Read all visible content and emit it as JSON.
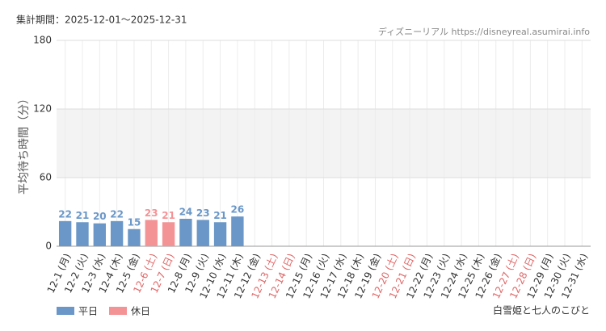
{
  "chart_data": {
    "type": "bar",
    "header": "集計期間：2025-12-01～2025-12-31",
    "source": "ディズニーリアル https://disneyreal.asumirai.info",
    "attraction": "白雪姫と七人のこびと",
    "ylabel": "平均待ち時間（分）",
    "categories": [
      "12-1 (月)",
      "12-2 (火)",
      "12-3 (水)",
      "12-4 (木)",
      "12-5 (金)",
      "12-6 (土)",
      "12-7 (日)",
      "12-8 (月)",
      "12-9 (火)",
      "12-10 (水)",
      "12-11 (木)",
      "12-12 (金)",
      "12-13 (土)",
      "12-14 (日)",
      "12-15 (月)",
      "12-16 (火)",
      "12-17 (水)",
      "12-18 (木)",
      "12-19 (金)",
      "12-20 (土)",
      "12-21 (日)",
      "12-22 (月)",
      "12-23 (火)",
      "12-24 (水)",
      "12-25 (木)",
      "12-26 (金)",
      "12-27 (土)",
      "12-28 (日)",
      "12-29 (月)",
      "12-30 (火)",
      "12-31 (水)"
    ],
    "category_label_colors": [
      "#333",
      "#333",
      "#333",
      "#333",
      "#333",
      "#e06666",
      "#e06666",
      "#333",
      "#333",
      "#333",
      "#333",
      "#333",
      "#e06666",
      "#e06666",
      "#333",
      "#333",
      "#333",
      "#333",
      "#333",
      "#e06666",
      "#e06666",
      "#333",
      "#333",
      "#333",
      "#333",
      "#333",
      "#e06666",
      "#e06666",
      "#333",
      "#333",
      "#333"
    ],
    "series": [
      {
        "name": "平日",
        "color": "#6a97c8",
        "values": [
          22,
          21,
          20,
          22,
          15,
          null,
          null,
          24,
          23,
          21,
          26,
          null,
          null,
          null,
          null,
          null,
          null,
          null,
          null,
          null,
          null,
          null,
          null,
          null,
          null,
          null,
          null,
          null,
          null,
          null,
          null
        ]
      },
      {
        "name": "休日",
        "color": "#f49396",
        "values": [
          null,
          null,
          null,
          null,
          null,
          23,
          21,
          null,
          null,
          null,
          null,
          null,
          null,
          null,
          null,
          null,
          null,
          null,
          null,
          null,
          null,
          null,
          null,
          null,
          null,
          null,
          null,
          null,
          null,
          null,
          null
        ]
      }
    ],
    "ylim": [
      0,
      180
    ],
    "yticks": [
      0,
      60,
      120,
      180
    ],
    "grid": true
  }
}
